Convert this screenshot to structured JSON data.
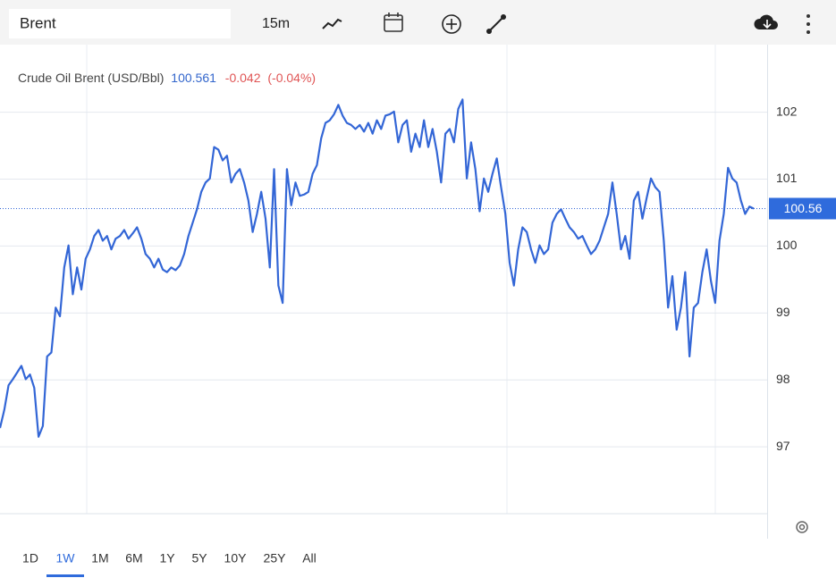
{
  "toolbar": {
    "symbol": "Brent",
    "interval": "15m"
  },
  "chart_data": {
    "type": "line",
    "title": "Crude Oil Brent (USD/Bbl)",
    "last": 100.561,
    "change": -0.042,
    "change_pct": "(-0.04%)",
    "last_price": 100.56,
    "color": "#3366d6",
    "ylim": [
      96,
      103.01
    ],
    "yticks": [
      97,
      98,
      99,
      100,
      101,
      102
    ],
    "grid": true,
    "values": [
      97.28,
      97.55,
      97.92,
      98.01,
      98.11,
      98.21,
      98.01,
      98.08,
      97.88,
      97.15,
      97.31,
      98.35,
      98.41,
      99.08,
      98.95,
      99.68,
      100.01,
      99.28,
      99.68,
      99.35,
      99.81,
      99.95,
      100.15,
      100.24,
      100.08,
      100.15,
      99.95,
      100.11,
      100.15,
      100.24,
      100.11,
      100.19,
      100.28,
      100.11,
      99.88,
      99.81,
      99.68,
      99.81,
      99.65,
      99.61,
      99.68,
      99.64,
      99.71,
      99.88,
      100.15,
      100.35,
      100.55,
      100.81,
      100.95,
      101.01,
      101.48,
      101.44,
      101.28,
      101.35,
      100.95,
      101.08,
      101.15,
      100.95,
      100.68,
      100.21,
      100.48,
      100.81,
      100.41,
      99.68,
      101.15,
      99.41,
      99.15,
      101.15,
      100.61,
      100.95,
      100.75,
      100.77,
      100.81,
      101.08,
      101.21,
      101.61,
      101.84,
      101.88,
      101.97,
      102.11,
      101.95,
      101.84,
      101.81,
      101.75,
      101.81,
      101.71,
      101.84,
      101.68,
      101.88,
      101.75,
      101.95,
      101.97,
      102.01,
      101.55,
      101.81,
      101.88,
      101.41,
      101.68,
      101.48,
      101.88,
      101.48,
      101.75,
      101.41,
      100.95,
      101.68,
      101.75,
      101.55,
      102.05,
      102.19,
      101.01,
      101.55,
      101.15,
      100.52,
      101.01,
      100.81,
      101.08,
      101.31,
      100.88,
      100.48,
      99.75,
      99.41,
      99.95,
      100.28,
      100.21,
      99.95,
      99.75,
      100.01,
      99.88,
      99.95,
      100.35,
      100.48,
      100.55,
      100.41,
      100.28,
      100.21,
      100.11,
      100.15,
      100.01,
      99.88,
      99.95,
      100.08,
      100.28,
      100.48,
      100.95,
      100.48,
      99.95,
      100.15,
      99.81,
      100.68,
      100.81,
      100.41,
      100.72,
      101.01,
      100.88,
      100.81,
      100.08,
      99.08,
      99.55,
      98.75,
      99.08,
      99.61,
      98.35,
      99.08,
      99.15,
      99.61,
      99.95,
      99.48,
      99.15,
      100.08,
      100.48,
      101.17,
      101.01,
      100.95,
      100.68,
      100.48,
      100.59,
      100.56
    ]
  },
  "ranges": [
    "1D",
    "1W",
    "1M",
    "6M",
    "1Y",
    "5Y",
    "10Y",
    "25Y",
    "All"
  ],
  "active_range": 1
}
